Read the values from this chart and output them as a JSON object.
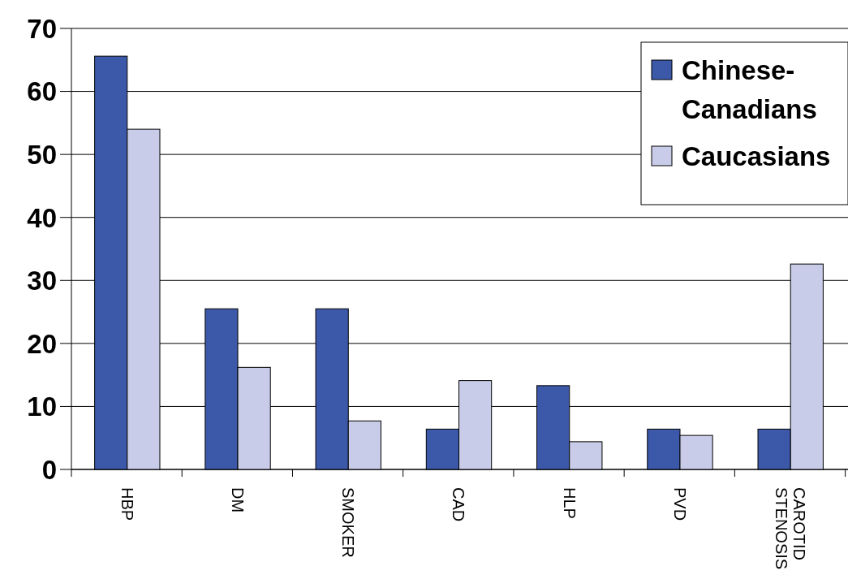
{
  "chart_data": {
    "type": "bar",
    "categories": [
      "HBP",
      "DM",
      "SMOKER",
      "CAD",
      "HLP",
      "PVD",
      "CAROTID STENOSIS"
    ],
    "series": [
      {
        "name": "Chinese-Canadians",
        "color": "#3c58a8",
        "values": [
          65.6,
          25.5,
          25.5,
          6.4,
          13.3,
          6.4,
          6.4
        ]
      },
      {
        "name": "Caucasians",
        "color": "#c8cce8",
        "values": [
          54.0,
          16.2,
          7.7,
          14.1,
          4.4,
          5.4,
          32.6
        ]
      }
    ],
    "ylim": [
      0,
      70
    ],
    "yticks": [
      0,
      10,
      20,
      30,
      40,
      50,
      60,
      70
    ],
    "grid": "y",
    "legend": "top right"
  }
}
